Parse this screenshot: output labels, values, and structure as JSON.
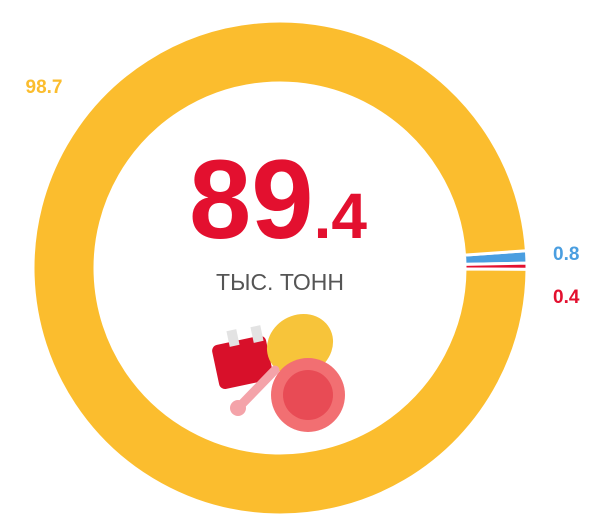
{
  "chart_data": {
    "type": "donut",
    "categories": [
      "Yellow",
      "Blue",
      "Red"
    ],
    "values": [
      98.7,
      0.8,
      0.4
    ],
    "colors": [
      "#fbbd2e",
      "#4a9ee0",
      "#e3102f"
    ],
    "center": {
      "value": "89",
      "fraction": ".4",
      "unit": "ТЫС. ТОНН"
    }
  }
}
